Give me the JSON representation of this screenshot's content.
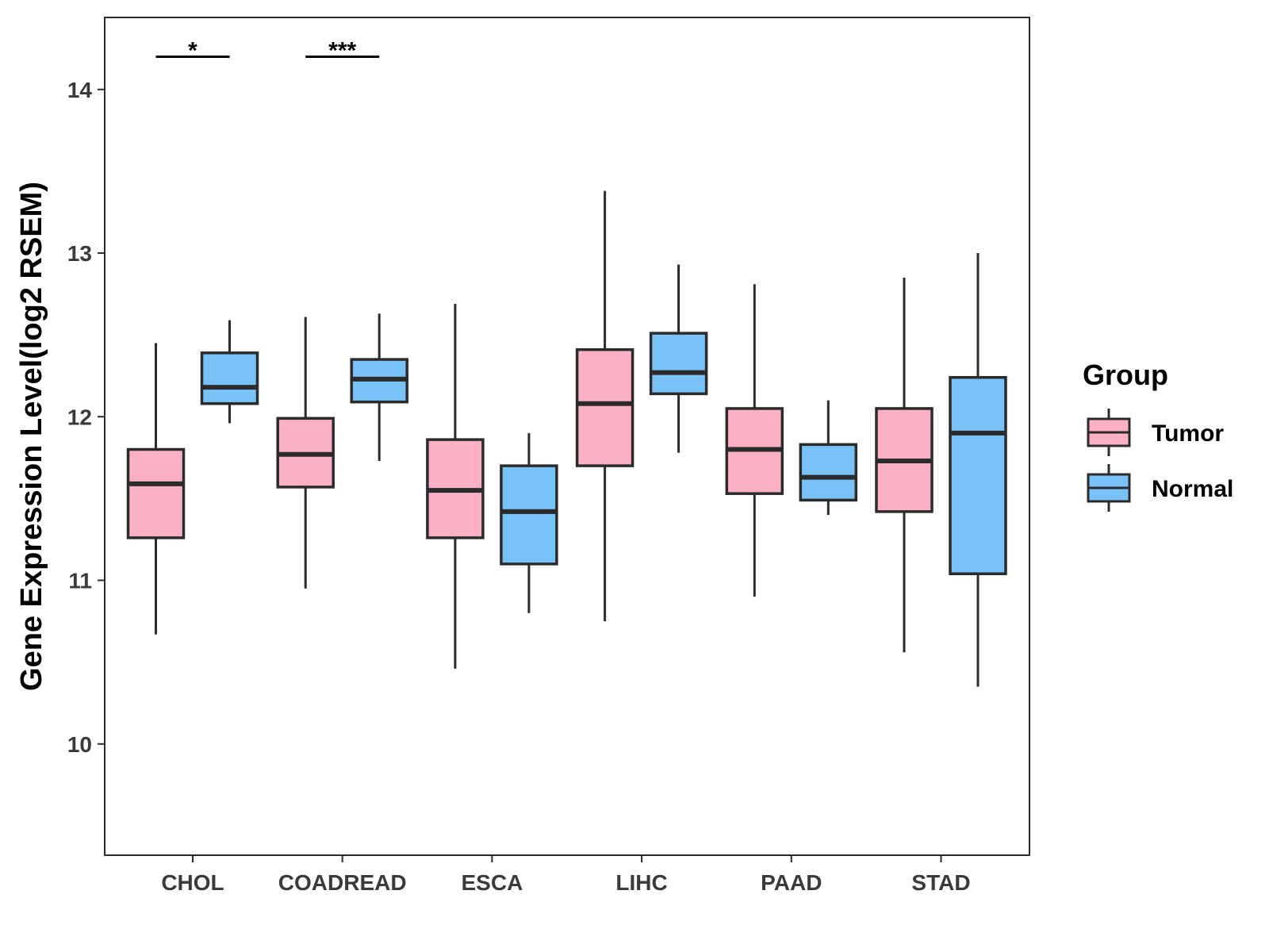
{
  "chart_data": {
    "type": "boxplot",
    "ylabel": "Gene Expression Level(log2 RSEM)",
    "xlabel": "",
    "ylim": [
      9.32,
      14.44
    ],
    "yticks": [
      10,
      11,
      12,
      13,
      14
    ],
    "categories": [
      "CHOL",
      "COADREAD",
      "ESCA",
      "LIHC",
      "PAAD",
      "STAD"
    ],
    "legend": {
      "title": "Group",
      "position": "right",
      "entries": [
        {
          "name": "Tumor",
          "color": "#fbb1c3"
        },
        {
          "name": "Normal",
          "color": "#79c2f8"
        }
      ]
    },
    "series": [
      {
        "name": "Tumor",
        "color": "#fbb1c3",
        "boxes": [
          {
            "min": 10.67,
            "q1": 11.26,
            "median": 11.59,
            "q3": 11.8,
            "max": 12.45
          },
          {
            "min": 10.95,
            "q1": 11.57,
            "median": 11.77,
            "q3": 11.99,
            "max": 12.61
          },
          {
            "min": 10.46,
            "q1": 11.26,
            "median": 11.55,
            "q3": 11.86,
            "max": 12.69
          },
          {
            "min": 10.75,
            "q1": 11.7,
            "median": 12.08,
            "q3": 12.41,
            "max": 13.38
          },
          {
            "min": 10.9,
            "q1": 11.53,
            "median": 11.8,
            "q3": 12.05,
            "max": 12.81
          },
          {
            "min": 10.56,
            "q1": 11.42,
            "median": 11.73,
            "q3": 12.05,
            "max": 12.85
          }
        ]
      },
      {
        "name": "Normal",
        "color": "#79c2f8",
        "boxes": [
          {
            "min": 11.96,
            "q1": 12.08,
            "median": 12.18,
            "q3": 12.39,
            "max": 12.59
          },
          {
            "min": 11.73,
            "q1": 12.09,
            "median": 12.23,
            "q3": 12.35,
            "max": 12.63
          },
          {
            "min": 10.8,
            "q1": 11.1,
            "median": 11.42,
            "q3": 11.7,
            "max": 11.9
          },
          {
            "min": 11.78,
            "q1": 12.14,
            "median": 12.27,
            "q3": 12.51,
            "max": 12.93
          },
          {
            "min": 11.4,
            "q1": 11.49,
            "median": 11.63,
            "q3": 11.83,
            "max": 12.1
          },
          {
            "min": 10.35,
            "q1": 11.04,
            "median": 11.9,
            "q3": 12.24,
            "max": 13.0
          }
        ]
      }
    ],
    "annotations": [
      {
        "category": "CHOL",
        "label": "*",
        "y": 14.2
      },
      {
        "category": "COADREAD",
        "label": "***",
        "y": 14.2
      }
    ]
  }
}
